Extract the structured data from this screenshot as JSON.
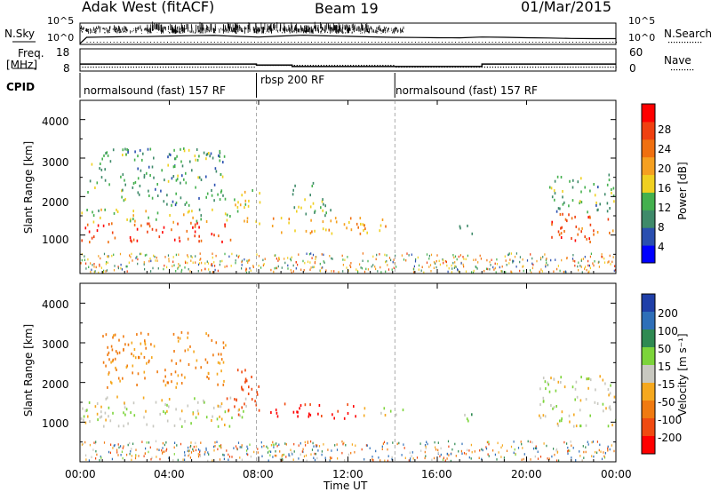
{
  "header": {
    "station": "Adak West (fitACF)",
    "beam": "Beam 19",
    "date": "01/Mar/2015"
  },
  "strip_panels": {
    "nsky_label": "N.Sky",
    "nsearch_label": "N.Search",
    "freq_label": "Freq.",
    "freq_unit": "[MHz]",
    "nave_label": "Nave",
    "cpid_label": "CPID",
    "left_ticks_top": [
      "10^5",
      "10^0"
    ],
    "right_ticks_top": [
      "10^5",
      "10^0"
    ],
    "left_ticks_freq": [
      "18",
      "8"
    ],
    "right_ticks_nave": [
      "60",
      "0"
    ]
  },
  "cpid_segments": [
    {
      "label": "normalsound (fast) 157 RF",
      "start": 0,
      "end": 7.9
    },
    {
      "label": "rbsp 200 RF",
      "start": 7.9,
      "end": 14.1
    },
    {
      "label": "normalsound (fast) 157 RF",
      "start": 14.1,
      "end": 24
    }
  ],
  "axes": {
    "xlabel": "Time UT",
    "ylabel": "Slant Range [km]",
    "x_ticks": [
      "00:00",
      "04:00",
      "08:00",
      "12:00",
      "16:00",
      "20:00",
      "00:00"
    ],
    "y_ticks": [
      "1000",
      "2000",
      "3000",
      "4000"
    ]
  },
  "colorbars": {
    "power": {
      "label": "Power [dB]",
      "ticks": [
        "4",
        "8",
        "12",
        "16",
        "20",
        "24",
        "28"
      ],
      "colors": [
        "#0000ff",
        "#2a4fb0",
        "#3f8a6a",
        "#44b04e",
        "#f0d020",
        "#f5a020",
        "#f07010",
        "#f04010",
        "#ff0000"
      ]
    },
    "velocity": {
      "label": "Velocity [m s⁻¹]",
      "ticks": [
        "200",
        "100",
        "50",
        "15",
        "-15",
        "-50",
        "-100",
        "-200"
      ],
      "colors": [
        "#1f3fa8",
        "#2e6fb8",
        "#2f8a52",
        "#7cd43a",
        "#c8c8c0",
        "#f5a81e",
        "#f07a10",
        "#f04a10",
        "#ff0000"
      ]
    }
  },
  "chart_data": [
    {
      "type": "line",
      "title": "N.Sky / N.Search",
      "x": [
        0,
        0.3,
        1,
        2,
        3,
        4,
        5,
        6,
        7,
        8,
        9,
        10,
        11,
        12,
        13,
        14,
        15,
        16,
        17,
        18,
        19,
        20,
        21,
        22,
        23,
        24
      ],
      "series": [
        {
          "name": "N.Sky",
          "values": [
            1,
            40,
            45,
            55,
            60,
            80,
            100,
            120,
            70,
            45,
            80,
            130,
            90,
            70,
            50,
            40,
            35,
            30,
            28,
            45,
            40,
            30,
            25,
            20,
            18,
            18
          ]
        }
      ],
      "ylim": [
        1,
        100000
      ],
      "yscale": "log"
    },
    {
      "type": "line",
      "title": "Freq / Nave",
      "x": [
        0,
        7.9,
        7.9,
        9.5,
        9.5,
        18,
        18,
        24
      ],
      "series": [
        {
          "name": "Freq.",
          "values": [
            11.0,
            11.0,
            10.5,
            10.5,
            9.8,
            9.8,
            11.0,
            11.0
          ]
        }
      ],
      "ylim": [
        8,
        18
      ]
    },
    {
      "type": "heatmap",
      "title": "Power",
      "xlim": [
        0,
        24
      ],
      "ylim": [
        0,
        4500
      ],
      "colorbar_label": "Power [dB]",
      "features": [
        {
          "t_start": 0,
          "t_end": 6.8,
          "range_low": 850,
          "range_high": 1350,
          "power_db": 28
        },
        {
          "t_start": 0,
          "t_end": 6.8,
          "range_low": 1350,
          "range_high": 1700,
          "power_db": 14
        },
        {
          "t_start": 0.3,
          "t_end": 6.5,
          "range_low": 1800,
          "range_high": 3300,
          "power_db": 10
        },
        {
          "t_start": 6.8,
          "t_end": 8.2,
          "range_low": 1300,
          "range_high": 2200,
          "power_db": 16
        },
        {
          "t_start": 8.5,
          "t_end": 13.8,
          "range_low": 1050,
          "range_high": 1500,
          "power_db": 20
        },
        {
          "t_start": 9.5,
          "t_end": 11.2,
          "range_low": 1500,
          "range_high": 2400,
          "power_db": 12
        },
        {
          "t_start": 16.8,
          "t_end": 17.6,
          "range_low": 1000,
          "range_high": 1300,
          "power_db": 6
        },
        {
          "t_start": 21.0,
          "t_end": 24,
          "range_low": 850,
          "range_high": 1600,
          "power_db": 26
        },
        {
          "t_start": 21.0,
          "t_end": 24,
          "range_low": 1600,
          "range_high": 2600,
          "power_db": 10
        }
      ]
    },
    {
      "type": "heatmap",
      "title": "Velocity",
      "xlim": [
        0,
        24
      ],
      "ylim": [
        0,
        4500
      ],
      "colorbar_label": "Velocity [m s⁻¹]",
      "features": [
        {
          "t_start": 0,
          "t_end": 7.5,
          "range_low": 900,
          "range_high": 1700,
          "velocity": 0
        },
        {
          "t_start": 1.0,
          "t_end": 6.5,
          "range_low": 1900,
          "range_high": 3300,
          "velocity": -60
        },
        {
          "t_start": 6.5,
          "t_end": 8.0,
          "range_low": 1200,
          "range_high": 2400,
          "velocity": -150
        },
        {
          "t_start": 8.5,
          "t_end": 12.5,
          "range_low": 1100,
          "range_high": 1500,
          "velocity": -220
        },
        {
          "t_start": 12.5,
          "t_end": 14.5,
          "range_low": 1150,
          "range_high": 1400,
          "velocity": 0
        },
        {
          "t_start": 16.8,
          "t_end": 17.8,
          "range_low": 1050,
          "range_high": 1300,
          "velocity": 30
        },
        {
          "t_start": 20.5,
          "t_end": 24,
          "range_low": 900,
          "range_high": 2200,
          "velocity": 0
        }
      ]
    }
  ]
}
